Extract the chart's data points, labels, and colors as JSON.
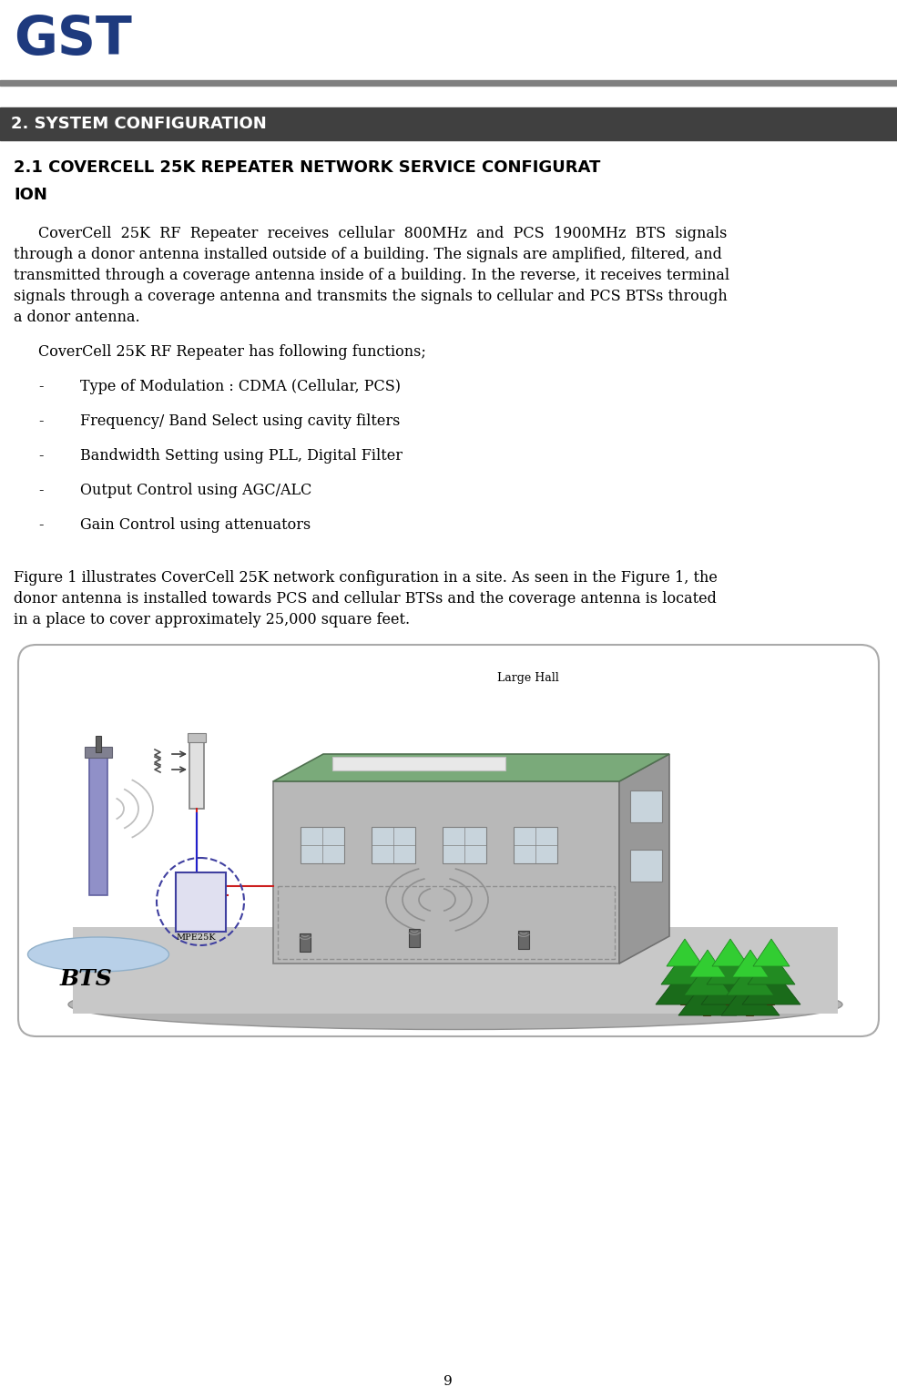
{
  "page_number": "9",
  "background_color": "#ffffff",
  "logo_color": "#1e3a7e",
  "header_line_color": "#808080",
  "section_header_text": "2. SYSTEM CONFIGURATION",
  "section_header_bg": "#404040",
  "section_header_fg": "#ffffff",
  "section_header_fontsize": 13,
  "subsection_line1": "2.1 COVERCELL 25K REPEATER NETWORK SERVICE CONFIGURAT",
  "subsection_line2": "ION",
  "subsection_fontsize": 13,
  "body_fontsize": 11.5,
  "body_line1": "CoverCell  25K  RF  Repeater  receives  cellular  800MHz  and  PCS  1900MHz  BTS  signals",
  "body_line2": "through a donor antenna installed outside of a building. The signals are amplified, filtered, and",
  "body_line3": "transmitted through a coverage antenna inside of a building. In the reverse, it receives terminal",
  "body_line4": "signals through a coverage antenna and transmits the signals to cellular and PCS BTSs through",
  "body_line5": "a donor antenna.",
  "functions_intro": "CoverCell 25K RF Repeater has following functions;",
  "bullet_items": [
    "Type of Modulation : CDMA (Cellular, PCS)",
    "Frequency/ Band Select using cavity filters",
    "Bandwidth Setting using PLL, Digital Filter",
    "Output Control using AGC/ALC",
    "Gain Control using attenuators"
  ],
  "fig_para_line1": "Figure 1 illustrates CoverCell 25K network configuration in a site. As seen in the Figure 1, the",
  "fig_para_line2": "donor antenna is installed towards PCS and cellular BTSs and the coverage antenna is located",
  "fig_para_line3": "in a place to cover approximately 25,000 square feet.",
  "figure_label_large_hall": "Large Hall",
  "figure_label_bts": "BTS",
  "figure_label_mpe25k": "MPE25K"
}
